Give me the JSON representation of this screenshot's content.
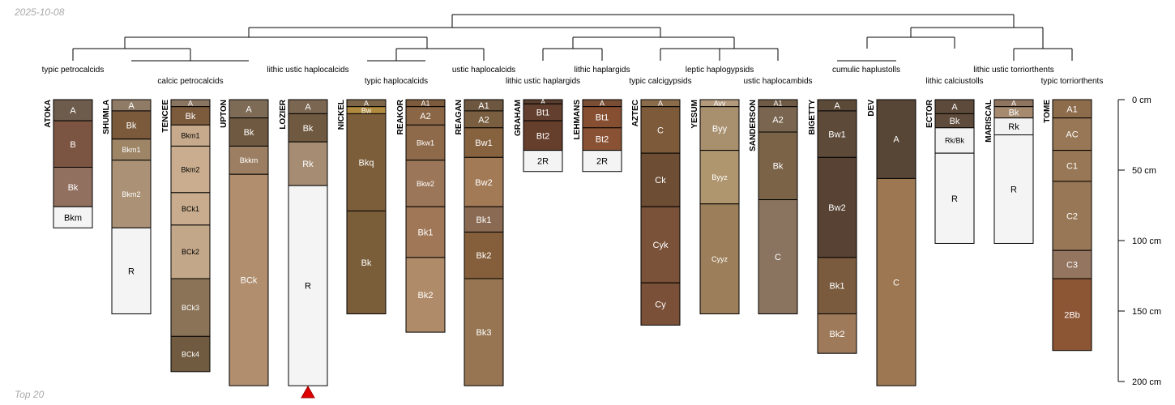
{
  "header": {
    "date": "2025-10-08"
  },
  "footer": {
    "note": "Top 20"
  },
  "depth_axis": {
    "unit": "cm",
    "ticks": [
      0,
      50,
      100,
      150,
      200
    ],
    "max": 200
  },
  "subgroups": [
    "typic petrocalcids",
    "calcic petrocalcids",
    "lithic ustic haplocalcids",
    "typic haplocalcids",
    "ustic haplocalcids",
    "lithic ustic haplargids",
    "lithic haplargids",
    "typic calcigypsids",
    "leptic haplogypsids",
    "ustic haplocambids",
    "cumulic haplustolls",
    "lithic calciustolls",
    "lithic ustic torriorthents",
    "typic torriorthents"
  ],
  "profiles": [
    {
      "name": "ATOKA",
      "horizons": [
        {
          "name": "A",
          "top": 0,
          "bottom": 15,
          "color": "#6d5b4b"
        },
        {
          "name": "B",
          "top": 15,
          "bottom": 48,
          "color": "#7c5542"
        },
        {
          "name": "Bk",
          "top": 48,
          "bottom": 76,
          "color": "#917060"
        },
        {
          "name": "Bkm",
          "top": 76,
          "bottom": 91,
          "color": "#f4f4f4"
        }
      ]
    },
    {
      "name": "SHUMLA",
      "horizons": [
        {
          "name": "A",
          "top": 0,
          "bottom": 8,
          "color": "#8f7b66"
        },
        {
          "name": "Bk",
          "top": 8,
          "bottom": 28,
          "color": "#7a5a3b"
        },
        {
          "name": "Bkm1",
          "top": 28,
          "bottom": 43,
          "color": "#9e8566"
        },
        {
          "name": "Bkm2",
          "top": 43,
          "bottom": 91,
          "color": "#ab9276"
        },
        {
          "name": "R",
          "top": 91,
          "bottom": 152,
          "color": "#f4f4f4"
        }
      ]
    },
    {
      "name": "TENCEE",
      "horizons": [
        {
          "name": "A",
          "top": 0,
          "bottom": 5,
          "color": "#8a7560"
        },
        {
          "name": "Bk",
          "top": 5,
          "bottom": 18,
          "color": "#7c5a3c"
        },
        {
          "name": "Bkm1",
          "top": 18,
          "bottom": 33,
          "color": "#c6aa8b"
        },
        {
          "name": "Bkm2",
          "top": 33,
          "bottom": 66,
          "color": "#c9ad8e"
        },
        {
          "name": "BCk1",
          "top": 66,
          "bottom": 89,
          "color": "#c8ac8d"
        },
        {
          "name": "BCk2",
          "top": 89,
          "bottom": 127,
          "color": "#c3a789"
        },
        {
          "name": "BCk3",
          "top": 127,
          "bottom": 168,
          "color": "#8b7357"
        },
        {
          "name": "BCk4",
          "top": 168,
          "bottom": 193,
          "color": "#705a40"
        }
      ]
    },
    {
      "name": "UPTON",
      "horizons": [
        {
          "name": "A",
          "top": 0,
          "bottom": 13,
          "color": "#7d6b56"
        },
        {
          "name": "Bk",
          "top": 13,
          "bottom": 33,
          "color": "#6f5940"
        },
        {
          "name": "Bkkm",
          "top": 33,
          "bottom": 53,
          "color": "#9c7f62"
        },
        {
          "name": "BCk",
          "top": 53,
          "bottom": 203,
          "color": "#b08e6e"
        }
      ]
    },
    {
      "name": "LOZIER",
      "horizons": [
        {
          "name": "A",
          "top": 0,
          "bottom": 10,
          "color": "#7a6651"
        },
        {
          "name": "Bk",
          "top": 10,
          "bottom": 30,
          "color": "#6f5940"
        },
        {
          "name": "Rk",
          "top": 30,
          "bottom": 61,
          "color": "#a68c72"
        },
        {
          "name": "R",
          "top": 61,
          "bottom": 203,
          "color": "#f4f4f4"
        }
      ]
    },
    {
      "name": "NICKEL",
      "horizons": [
        {
          "name": "A",
          "top": 0,
          "bottom": 5,
          "color": "#7c6548"
        },
        {
          "name": "Bw",
          "top": 5,
          "bottom": 10,
          "color": "#b08a3e"
        },
        {
          "name": "Bkq",
          "top": 10,
          "bottom": 79,
          "color": "#7c5e3a"
        },
        {
          "name": "Bk",
          "top": 79,
          "bottom": 152,
          "color": "#7a5d39"
        }
      ]
    },
    {
      "name": "REAKOR",
      "horizons": [
        {
          "name": "A1",
          "top": 0,
          "bottom": 5,
          "color": "#7c5a3c"
        },
        {
          "name": "A2",
          "top": 5,
          "bottom": 18,
          "color": "#8b6646"
        },
        {
          "name": "Bkw1",
          "top": 18,
          "bottom": 43,
          "color": "#8f6a4a"
        },
        {
          "name": "Bkw2",
          "top": 43,
          "bottom": 76,
          "color": "#9c7658"
        },
        {
          "name": "Bk1",
          "top": 76,
          "bottom": 112,
          "color": "#a07858"
        },
        {
          "name": "Bk2",
          "top": 112,
          "bottom": 165,
          "color": "#b08b6a"
        }
      ]
    },
    {
      "name": "REAGAN",
      "horizons": [
        {
          "name": "A1",
          "top": 0,
          "bottom": 8,
          "color": "#6d5740"
        },
        {
          "name": "A2",
          "top": 8,
          "bottom": 20,
          "color": "#7a5e40"
        },
        {
          "name": "Bw1",
          "top": 20,
          "bottom": 41,
          "color": "#86623f"
        },
        {
          "name": "Bw2",
          "top": 41,
          "bottom": 76,
          "color": "#a27a55"
        },
        {
          "name": "Bk1",
          "top": 76,
          "bottom": 94,
          "color": "#8a6a52"
        },
        {
          "name": "Bk2",
          "top": 94,
          "bottom": 127,
          "color": "#855f3b"
        },
        {
          "name": "Bk3",
          "top": 127,
          "bottom": 203,
          "color": "#977552"
        }
      ]
    },
    {
      "name": "GRAHAM",
      "horizons": [
        {
          "name": "A",
          "top": 0,
          "bottom": 3,
          "color": "#5a3e30"
        },
        {
          "name": "Bt1",
          "top": 3,
          "bottom": 15,
          "color": "#623f2e"
        },
        {
          "name": "Bt2",
          "top": 15,
          "bottom": 36,
          "color": "#663e2c"
        },
        {
          "name": "2R",
          "top": 36,
          "bottom": 51,
          "color": "#f4f4f4"
        }
      ]
    },
    {
      "name": "LEHMANS",
      "horizons": [
        {
          "name": "A",
          "top": 0,
          "bottom": 5,
          "color": "#7a4e34"
        },
        {
          "name": "Bt1",
          "top": 5,
          "bottom": 20,
          "color": "#874f32"
        },
        {
          "name": "Bt2",
          "top": 20,
          "bottom": 36,
          "color": "#8a5234"
        },
        {
          "name": "2R",
          "top": 36,
          "bottom": 51,
          "color": "#f4f4f4"
        }
      ]
    },
    {
      "name": "AZTEC",
      "horizons": [
        {
          "name": "A",
          "top": 0,
          "bottom": 5,
          "color": "#8a6c4a"
        },
        {
          "name": "C",
          "top": 5,
          "bottom": 38,
          "color": "#7c5a3a"
        },
        {
          "name": "Ck",
          "top": 38,
          "bottom": 76,
          "color": "#6e4d35"
        },
        {
          "name": "Cyk",
          "top": 76,
          "bottom": 130,
          "color": "#7a5139"
        },
        {
          "name": "Cy",
          "top": 130,
          "bottom": 160,
          "color": "#7a5038"
        }
      ]
    },
    {
      "name": "YESUM",
      "horizons": [
        {
          "name": "Ayy",
          "top": 0,
          "bottom": 5,
          "color": "#b39a7d"
        },
        {
          "name": "Byy",
          "top": 5,
          "bottom": 36,
          "color": "#a8906f"
        },
        {
          "name": "Byyz",
          "top": 36,
          "bottom": 74,
          "color": "#b0966f"
        },
        {
          "name": "Cyyz",
          "top": 74,
          "bottom": 152,
          "color": "#9c7f5a"
        }
      ]
    },
    {
      "name": "SANDERSON",
      "horizons": [
        {
          "name": "A1",
          "top": 0,
          "bottom": 5,
          "color": "#6f5b45"
        },
        {
          "name": "A2",
          "top": 5,
          "bottom": 23,
          "color": "#7a6650"
        },
        {
          "name": "Bk",
          "top": 23,
          "bottom": 71,
          "color": "#7b6348"
        },
        {
          "name": "C",
          "top": 71,
          "bottom": 152,
          "color": "#8a7460"
        }
      ]
    },
    {
      "name": "BIGETTY",
      "horizons": [
        {
          "name": "A",
          "top": 0,
          "bottom": 8,
          "color": "#5c4a38"
        },
        {
          "name": "Bw1",
          "top": 8,
          "bottom": 41,
          "color": "#5e4a39"
        },
        {
          "name": "Bw2",
          "top": 41,
          "bottom": 112,
          "color": "#574233"
        },
        {
          "name": "Bk1",
          "top": 112,
          "bottom": 152,
          "color": "#7a5b3e"
        },
        {
          "name": "Bk2",
          "top": 152,
          "bottom": 180,
          "color": "#9e7a5a"
        }
      ]
    },
    {
      "name": "DEV",
      "horizons": [
        {
          "name": "A",
          "top": 0,
          "bottom": 56,
          "color": "#574535"
        },
        {
          "name": "C",
          "top": 56,
          "bottom": 203,
          "color": "#9c7752"
        }
      ]
    },
    {
      "name": "ECTOR",
      "horizons": [
        {
          "name": "A",
          "top": 0,
          "bottom": 10,
          "color": "#5e4a3a"
        },
        {
          "name": "Bk",
          "top": 10,
          "bottom": 20,
          "color": "#5f4b3b"
        },
        {
          "name": "Rk/Bk",
          "top": 20,
          "bottom": 38,
          "color": "#f2f2f2"
        },
        {
          "name": "R",
          "top": 38,
          "bottom": 102,
          "color": "#f4f4f4"
        }
      ]
    },
    {
      "name": "MARISCAL",
      "horizons": [
        {
          "name": "A",
          "top": 0,
          "bottom": 5,
          "color": "#8f7560"
        },
        {
          "name": "Bk",
          "top": 5,
          "bottom": 13,
          "color": "#a58a70"
        },
        {
          "name": "Rk",
          "top": 13,
          "bottom": 25,
          "color": "#f2f2f2"
        },
        {
          "name": "R",
          "top": 25,
          "bottom": 102,
          "color": "#f4f4f4"
        }
      ]
    },
    {
      "name": "TOME",
      "horizons": [
        {
          "name": "A1",
          "top": 0,
          "bottom": 13,
          "color": "#8d6c4c"
        },
        {
          "name": "AC",
          "top": 13,
          "bottom": 36,
          "color": "#977755"
        },
        {
          "name": "C1",
          "top": 36,
          "bottom": 58,
          "color": "#977755"
        },
        {
          "name": "C2",
          "top": 58,
          "bottom": 107,
          "color": "#987756"
        },
        {
          "name": "C3",
          "top": 107,
          "bottom": 127,
          "color": "#937560"
        },
        {
          "name": "2Bb",
          "top": 127,
          "bottom": 178,
          "color": "#8c5534"
        }
      ]
    }
  ]
}
